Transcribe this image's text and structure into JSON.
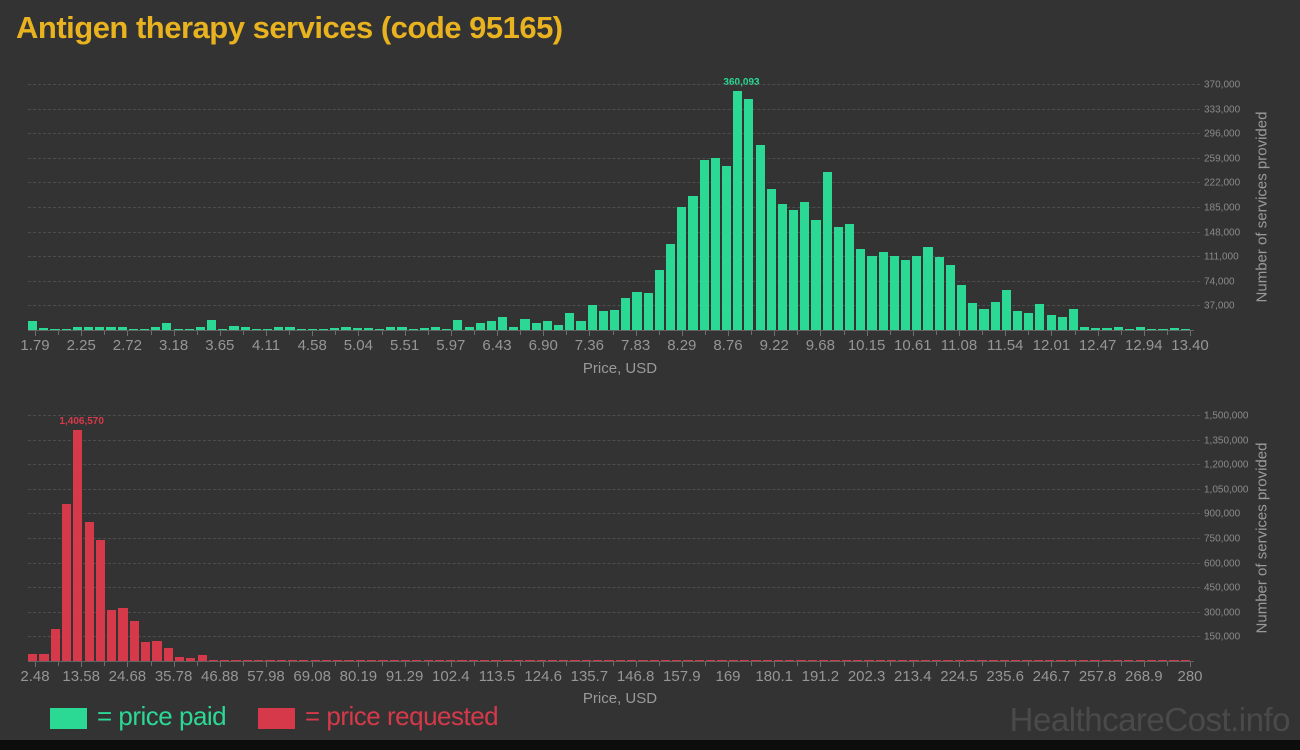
{
  "title": "Antigen therapy services (code 95165)",
  "watermark": "HealthcareCost.info",
  "legend": {
    "paid_label": "= price paid",
    "requested_label": "= price requested"
  },
  "colors": {
    "background": "#333333",
    "title": "#e9b320",
    "paid": "#2bd894",
    "requested": "#d6394a",
    "axis_text": "#8a8a8a",
    "grid": "#4d4d4d",
    "watermark": "#4a4a4a"
  },
  "chart_data": [
    {
      "type": "bar",
      "name": "price-paid-histogram",
      "series_label": "price paid",
      "bar_color": "#2bd894",
      "xlabel": "Price, USD",
      "ylabel": "Number of services provided",
      "peak_annotation": "360,093",
      "peak_value": 360093,
      "x_range": [
        1.79,
        13.4
      ],
      "ylim": [
        0,
        380000
      ],
      "legend_position": "bottom",
      "grid": true,
      "x_tick_labels": [
        "1.79",
        "2.25",
        "2.72",
        "3.18",
        "3.65",
        "4.11",
        "4.58",
        "5.04",
        "5.51",
        "5.97",
        "6.43",
        "6.90",
        "7.36",
        "7.83",
        "8.29",
        "8.76",
        "9.22",
        "9.68",
        "10.15",
        "10.61",
        "11.08",
        "11.54",
        "12.01",
        "12.47",
        "12.94",
        "13.40"
      ],
      "y_tick_labels": [
        "37,000",
        "74,000",
        "111,000",
        "148,000",
        "185,000",
        "222,000",
        "259,000",
        "296,000",
        "333,000",
        "370,000"
      ],
      "values": [
        13000,
        3000,
        1000,
        2000,
        4000,
        5000,
        4000,
        5000,
        4000,
        2000,
        1000,
        4000,
        11000,
        2000,
        1000,
        5000,
        15000,
        2000,
        6000,
        4000,
        2000,
        1000,
        4000,
        4000,
        1000,
        2000,
        1000,
        3000,
        4000,
        3000,
        3000,
        2000,
        4000,
        5000,
        2000,
        3000,
        4000,
        2000,
        15000,
        4000,
        10000,
        14000,
        20000,
        4000,
        17000,
        11000,
        13000,
        8000,
        25000,
        13000,
        38000,
        28000,
        30000,
        48000,
        57000,
        55000,
        90000,
        130000,
        185000,
        201000,
        256000,
        259000,
        246000,
        360093,
        347000,
        278000,
        212000,
        189000,
        181000,
        193000,
        166000,
        238000,
        155000,
        159000,
        122000,
        112000,
        118000,
        112000,
        105000,
        112000,
        125000,
        110000,
        98000,
        67000,
        41000,
        31000,
        42000,
        60000,
        28000,
        25000,
        39000,
        22000,
        20000,
        31000,
        4000,
        2500,
        3000,
        4000,
        1500,
        4500,
        1000,
        2000,
        3000,
        2000
      ]
    },
    {
      "type": "bar",
      "name": "price-requested-histogram",
      "series_label": "price requested",
      "bar_color": "#d6394a",
      "xlabel": "Price, USD",
      "ylabel": "Number of services provided",
      "peak_annotation": "1,406,570",
      "peak_value": 1406570,
      "x_range": [
        2.48,
        280
      ],
      "ylim": [
        0,
        1550000
      ],
      "legend_position": "bottom",
      "grid": true,
      "x_tick_labels": [
        "2.48",
        "13.58",
        "24.68",
        "35.78",
        "46.88",
        "57.98",
        "69.08",
        "80.19",
        "91.29",
        "102.4",
        "113.5",
        "124.6",
        "135.7",
        "146.8",
        "157.9",
        "169",
        "180.1",
        "191.2",
        "202.3",
        "213.4",
        "224.5",
        "235.6",
        "246.7",
        "257.8",
        "268.9",
        "280"
      ],
      "y_tick_labels": [
        "150,000",
        "300,000",
        "450,000",
        "600,000",
        "750,000",
        "900,000",
        "1,050,000",
        "1,200,000",
        "1,350,000",
        "1,500,000"
      ],
      "values": [
        40000,
        40000,
        195000,
        960000,
        1406570,
        845000,
        740000,
        313000,
        325000,
        244000,
        114000,
        120000,
        80000,
        24000,
        20000,
        36000,
        8000,
        8000,
        6000,
        5000,
        6000,
        5000,
        4000,
        5000,
        4000,
        4000,
        5000,
        4000,
        3000,
        1000,
        1000,
        1000,
        1000,
        1000,
        4000,
        1000,
        1000,
        4000,
        1000,
        1000,
        1000,
        1000,
        1000,
        1000,
        1000,
        1000,
        1000,
        1000,
        1000,
        1000,
        1000,
        1000,
        1000,
        1000,
        1000,
        1000,
        1000,
        1000,
        1000,
        1000,
        1000,
        1000,
        1000,
        1000,
        1000,
        1000,
        1000,
        1000,
        1000,
        1000,
        1000,
        1000,
        1000,
        1000,
        1000,
        1000,
        1000,
        1000,
        1000,
        1000,
        1000,
        1000,
        1000,
        1000,
        1000,
        1000,
        1000,
        1000,
        1000,
        1000,
        1000,
        1000,
        1000,
        1000,
        1000,
        1000,
        1000,
        1000,
        1000,
        1000,
        1000,
        1000,
        1000
      ]
    }
  ]
}
